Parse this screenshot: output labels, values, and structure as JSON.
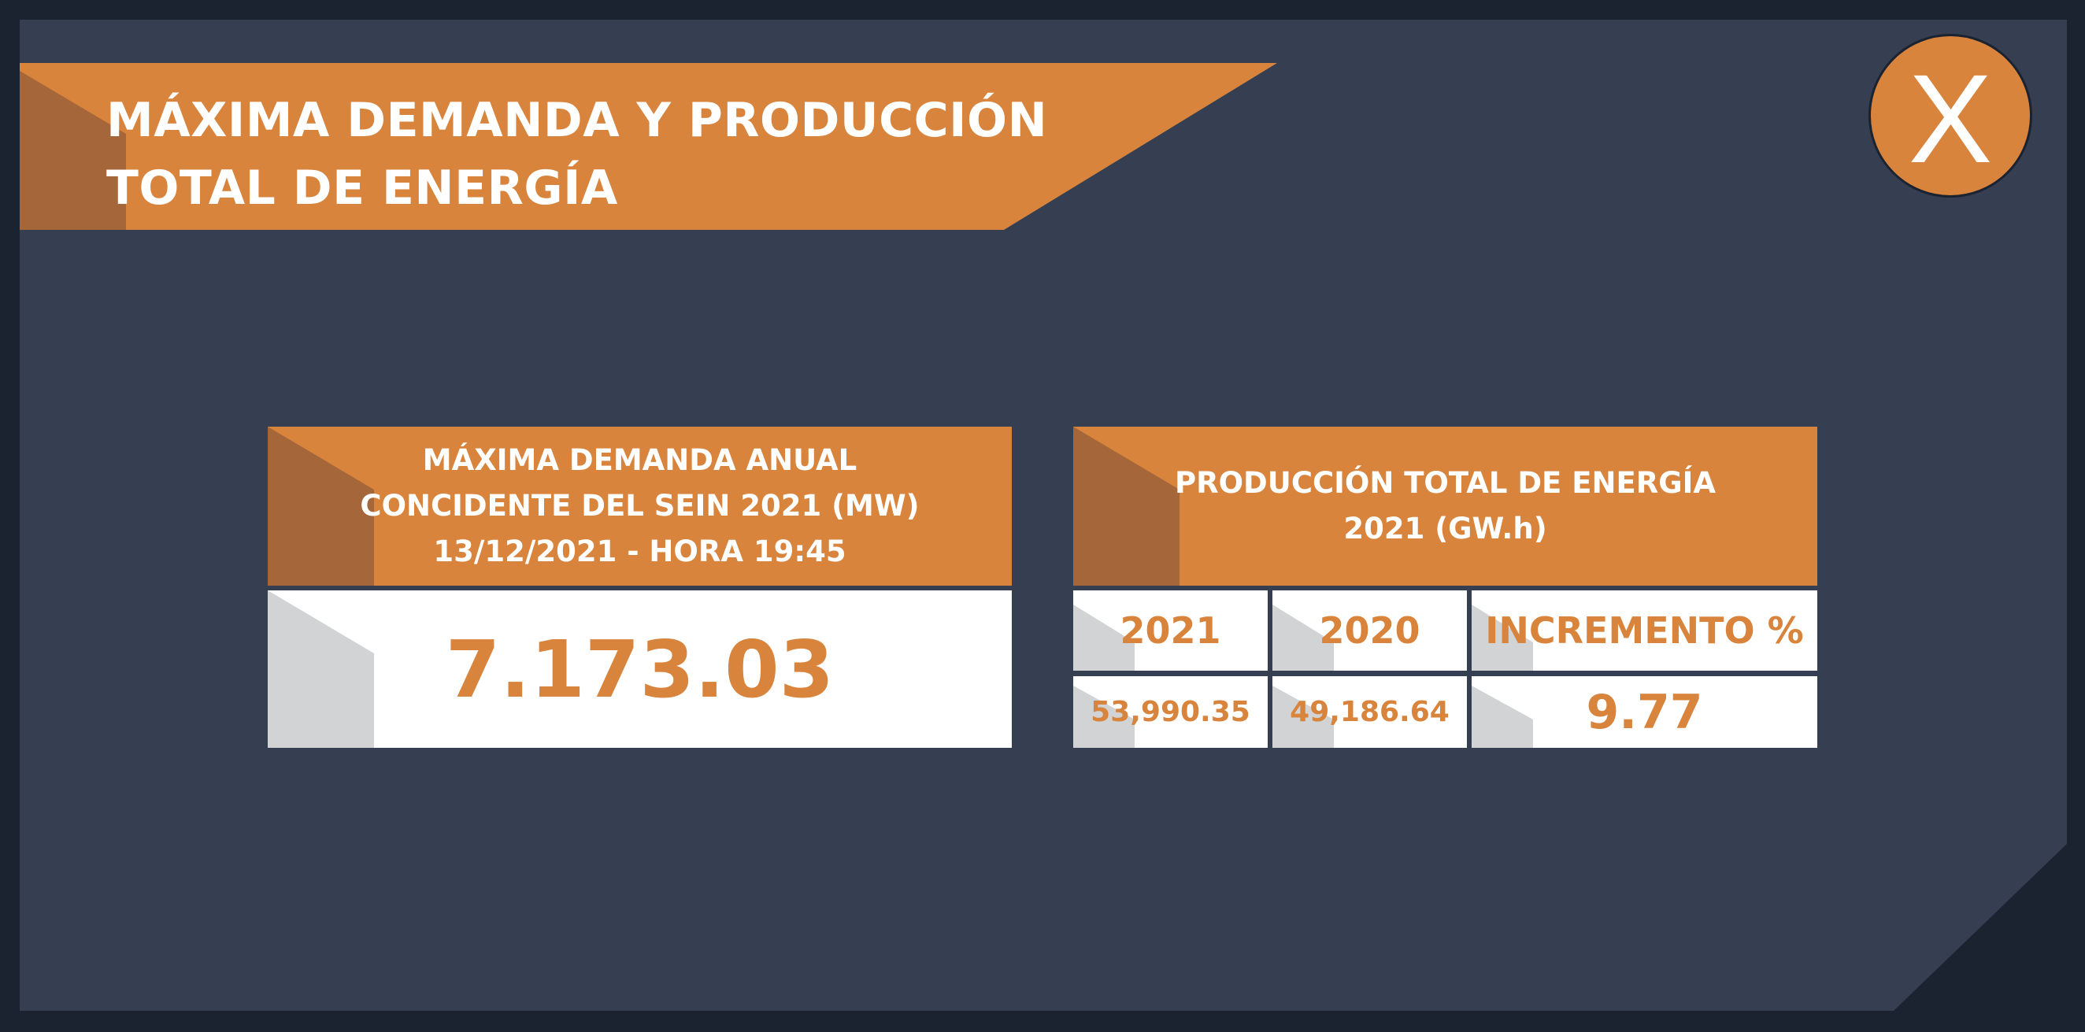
{
  "colors": {
    "background": "#363e52",
    "frame": "#1b2230",
    "accent": "#d8843c",
    "accent_dark": "#a5663a",
    "fold_gray": "#d1d3d5",
    "text_light": "#ffffff"
  },
  "title": {
    "line1": "MÁXIMA DEMANDA Y PRODUCCIÓN",
    "line2": "TOTAL DE ENERGÍA"
  },
  "close_button": {
    "label": "X",
    "icon": "close-icon"
  },
  "demand_card": {
    "header_line1": "MÁXIMA DEMANDA ANUAL",
    "header_line2": "CONCIDENTE DEL SEIN 2021 (MW)",
    "header_line3": "13/12/2021 - HORA 19:45",
    "value": "7.173.03"
  },
  "production_card": {
    "header_line1": "PRODUCCIÓN TOTAL DE ENERGÍA",
    "header_line2": "2021 (GW.h)",
    "columns": [
      "2021",
      "2020",
      "INCREMENTO %"
    ],
    "values": [
      "53,990.35",
      "49,186.64",
      "9.77"
    ]
  }
}
